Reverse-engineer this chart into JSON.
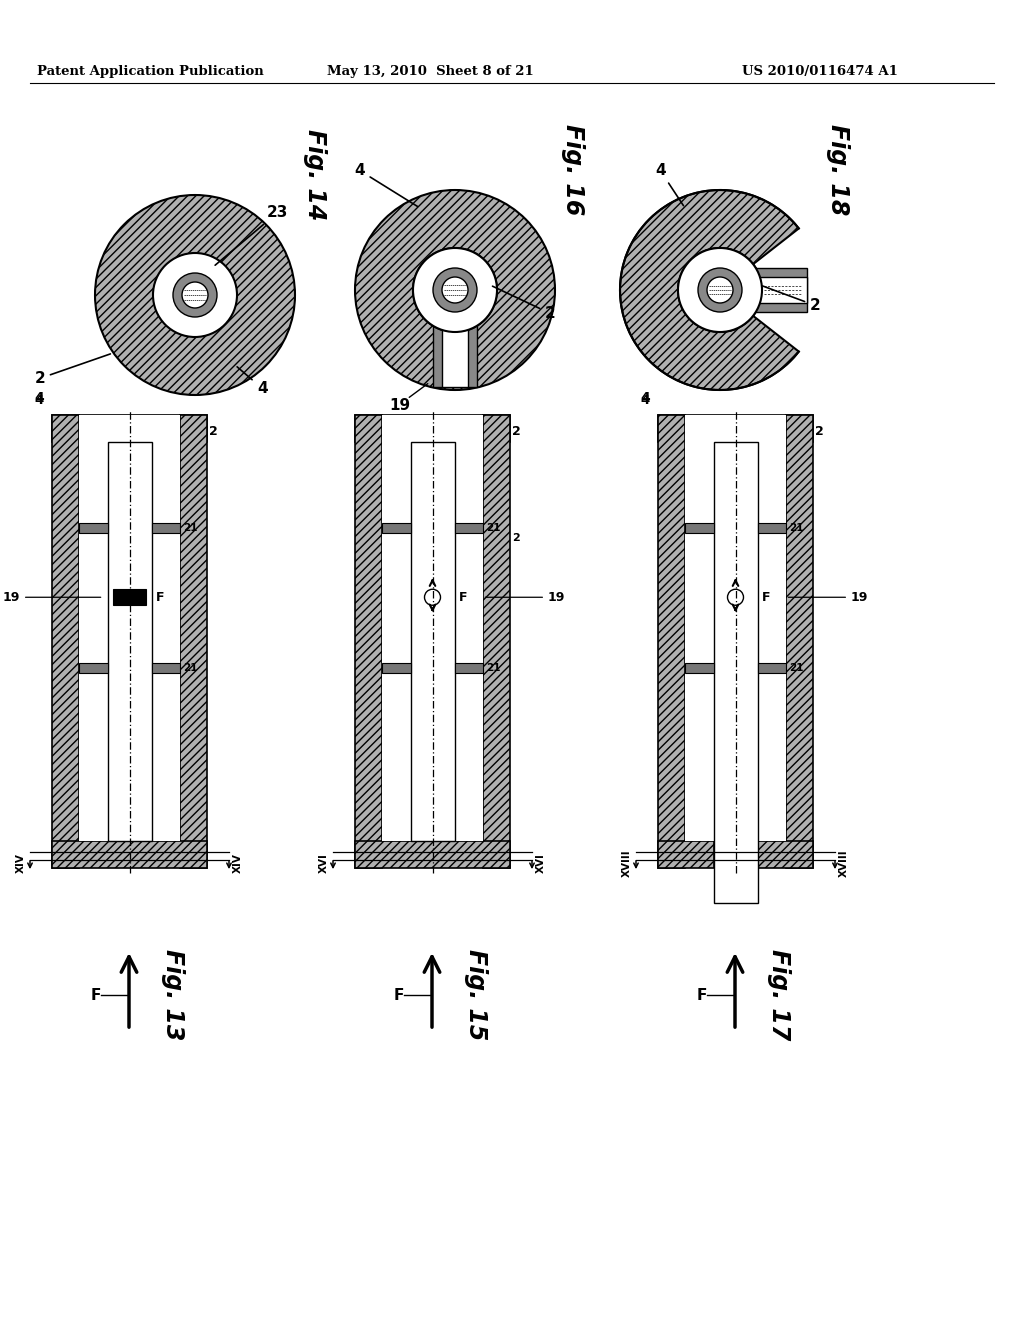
{
  "bg_color": "#ffffff",
  "header_left": "Patent Application Publication",
  "header_mid": "May 13, 2010  Sheet 8 of 21",
  "header_right": "US 2010/0116474 A1",
  "hatch_color": "#b0b0b0"
}
